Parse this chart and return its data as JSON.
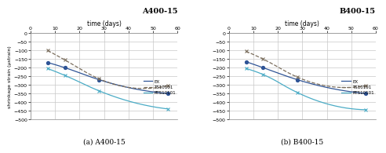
{
  "title_a": "A400-15",
  "title_b": "B400-15",
  "subtitle_a": "(a) A400-15",
  "subtitle_b": "(b) B400-15",
  "xlabel": "time (days)",
  "ylabel": "shrinkage strain (μstrain)",
  "xlim": [
    0,
    60
  ],
  "ylim": [
    -500,
    0
  ],
  "yticks": [
    0,
    -50,
    -100,
    -150,
    -200,
    -250,
    -300,
    -350,
    -400,
    -450,
    -500
  ],
  "xticks": [
    0,
    10,
    20,
    30,
    40,
    50,
    60
  ],
  "series_A": {
    "EX": {
      "x": [
        7,
        14,
        28,
        56
      ],
      "y": [
        -170,
        -200,
        -270,
        -350
      ],
      "color": "#2f5496",
      "marker": "o",
      "linestyle": "-",
      "markersize": 3
    },
    "TS10101": {
      "x": [
        7,
        14,
        28,
        56
      ],
      "y": [
        -100,
        -155,
        -265,
        -305
      ],
      "color": "#7b6e5d",
      "marker": "x",
      "linestyle": "--",
      "markersize": 3
    },
    "RTS10101": {
      "x": [
        7,
        14,
        28,
        56
      ],
      "y": [
        -205,
        -245,
        -335,
        -440
      ],
      "color": "#4bacc6",
      "marker": "x",
      "linestyle": "-",
      "markersize": 3
    }
  },
  "series_B": {
    "EX": {
      "x": [
        7,
        14,
        28,
        56
      ],
      "y": [
        -165,
        -200,
        -270,
        -350
      ],
      "color": "#2f5496",
      "marker": "o",
      "linestyle": "-",
      "markersize": 3
    },
    "TS10101": {
      "x": [
        7,
        14,
        28,
        56
      ],
      "y": [
        -105,
        -150,
        -255,
        -305
      ],
      "color": "#7b6e5d",
      "marker": "x",
      "linestyle": "--",
      "markersize": 3
    },
    "RTS10101": {
      "x": [
        7,
        14,
        28,
        56
      ],
      "y": [
        -205,
        -240,
        -345,
        -445
      ],
      "color": "#4bacc6",
      "marker": "x",
      "linestyle": "-",
      "markersize": 3
    }
  },
  "legend_order": [
    "EX",
    "TS10101",
    "RTS10101"
  ],
  "background_color": "#ffffff",
  "grid_color": "#c8c8c8"
}
